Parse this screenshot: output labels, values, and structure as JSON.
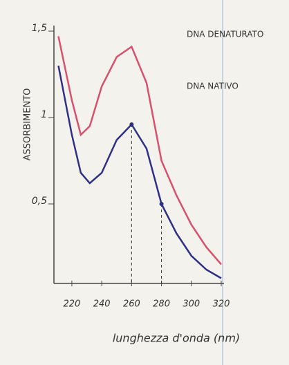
{
  "chart_data": {
    "type": "line",
    "y_label": "ASSORBIMENTO",
    "x_label": "lunghezza d'onda (nm)",
    "x": [
      211,
      220,
      226,
      232,
      240,
      250,
      260,
      270,
      280,
      290,
      300,
      310,
      320
    ],
    "series": [
      {
        "name": "DNA DENATURATO",
        "color": "#d9506e",
        "values": [
          1.47,
          1.1,
          0.9,
          0.95,
          1.18,
          1.35,
          1.41,
          1.2,
          0.75,
          0.55,
          0.38,
          0.25,
          0.15
        ]
      },
      {
        "name": "DNA NATIVO",
        "color": "#2e2f86",
        "values": [
          1.3,
          0.9,
          0.68,
          0.62,
          0.68,
          0.87,
          0.96,
          0.82,
          0.5,
          0.33,
          0.2,
          0.12,
          0.07
        ]
      }
    ],
    "xlim": [
      208,
      320
    ],
    "ylim": [
      0.04,
      1.5
    ],
    "xticks": [
      220,
      240,
      260,
      280,
      300,
      320
    ],
    "yticks": [
      {
        "value": 0.5,
        "label": "0,5"
      },
      1,
      {
        "value": 1.5,
        "label": "1,5"
      }
    ],
    "grid": false
  }
}
